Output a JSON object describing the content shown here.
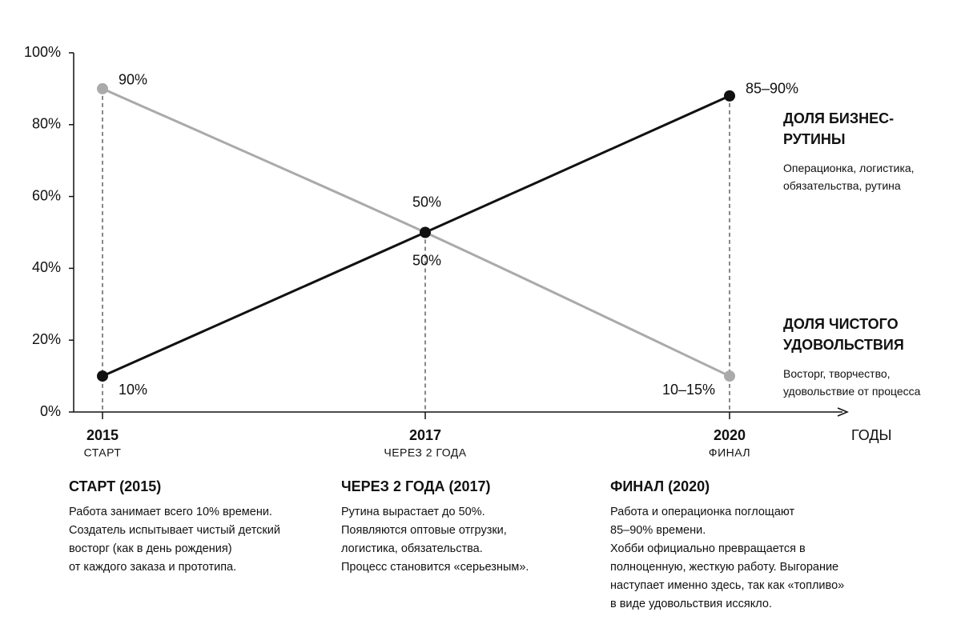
{
  "chart_data": {
    "type": "line",
    "categories": [
      "2015",
      "2017",
      "2020"
    ],
    "category_labels": [
      "СТАРТ",
      "ЧЕРЕЗ 2 ГОДА",
      "ФИНАЛ"
    ],
    "x_label": "ГОДЫ",
    "ylim": [
      0,
      100
    ],
    "yticks": [
      {
        "value": 0,
        "label": "0%"
      },
      {
        "value": 20,
        "label": "20%"
      },
      {
        "value": 40,
        "label": "40%"
      },
      {
        "value": 60,
        "label": "60%"
      },
      {
        "value": 80,
        "label": "80%"
      },
      {
        "value": 100,
        "label": "100%"
      }
    ],
    "series": [
      {
        "name": "ДОЛЯ БИЗНЕС-РУТИНЫ",
        "description": "Операционка, логистика, обязательства, рутина",
        "color": "#111111",
        "values": [
          10,
          50,
          88
        ],
        "value_labels": [
          "10%",
          "50%",
          "85–90%"
        ]
      },
      {
        "name": "ДОЛЯ ЧИСТОГО УДОВОЛЬСТВИЯ",
        "description": "Восторг, творчество, удовольствие от процесса",
        "color": "#aaaaaa",
        "values": [
          90,
          50,
          10
        ],
        "value_labels": [
          "90%",
          "50%",
          "10–15%"
        ]
      }
    ]
  },
  "annotations": [
    {
      "title": "СТАРТ (2015)",
      "lines": [
        "Работа занимает всего 10% времени.",
        "Создатель испытывает чистый детский",
        "восторг (как в день рождения)",
        "от каждого заказа и прототипа."
      ]
    },
    {
      "title": "ЧЕРЕЗ 2 ГОДА (2017)",
      "lines": [
        "Рутина вырастает до 50%.",
        "Появляются оптовые отгрузки,",
        "логистика, обязательства.",
        "Процесс становится «серьезным»."
      ]
    },
    {
      "title": "ФИНАЛ (2020)",
      "lines": [
        "Работа и операционка поглощают",
        "85–90% времени.",
        "Хобби официально превращается в",
        "полноценную, жесткую работу. Выгорание",
        "наступает именно здесь, так как «топливо»",
        "в виде удовольствия иссякло."
      ]
    }
  ]
}
